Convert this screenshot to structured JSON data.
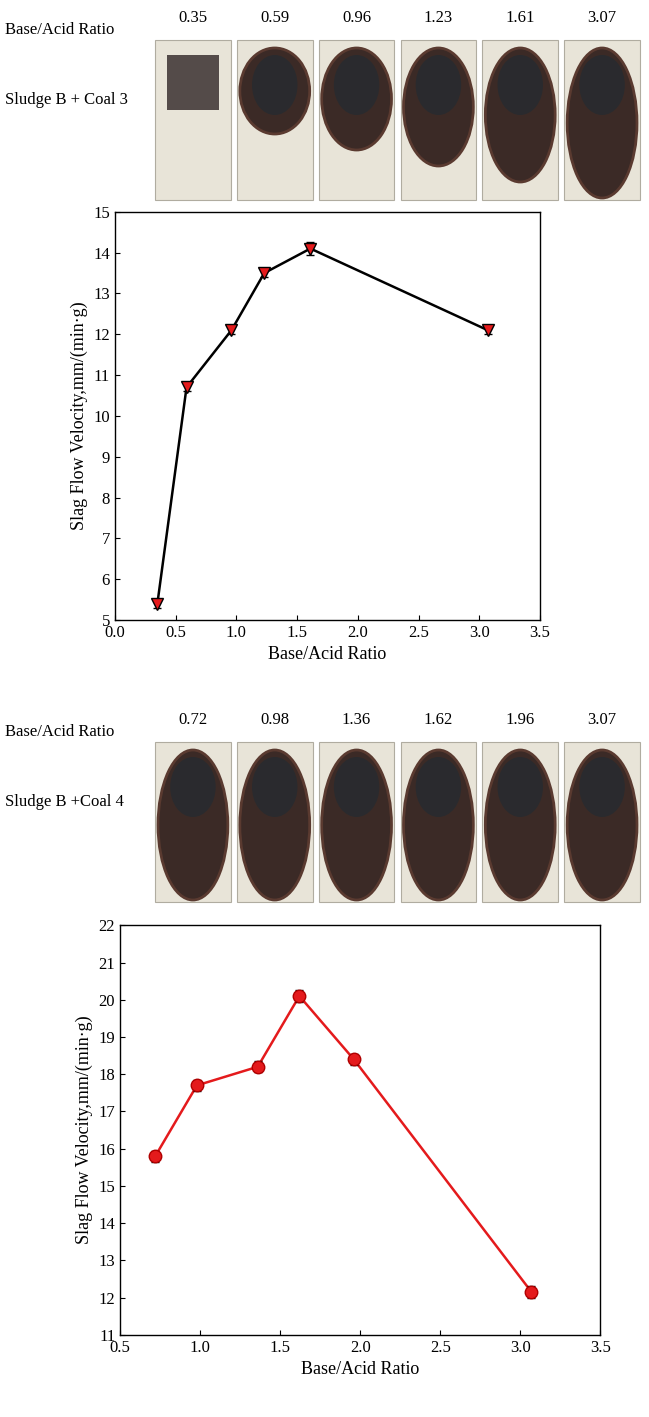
{
  "strips": [
    {
      "header": "Base/Acid Ratio",
      "sample": "Sludge B + Coal 3",
      "ratios": [
        0.35,
        0.59,
        0.96,
        1.23,
        1.61,
        3.07
      ]
    },
    {
      "header": "Base/Acid Ratio",
      "sample": "Sludge B +Coal 4",
      "ratios": [
        0.72,
        0.98,
        1.36,
        1.62,
        1.96,
        3.07
      ]
    }
  ],
  "chart_data": [
    {
      "type": "line",
      "x_label": "Base/Acid Ratio",
      "y_label": "Slag Flow Velocity,mm/(min·g)",
      "x": [
        0.35,
        0.59,
        0.96,
        1.23,
        1.61,
        3.07
      ],
      "values": [
        5.4,
        10.7,
        12.1,
        13.5,
        14.1,
        12.1
      ],
      "errors": [
        0.1,
        0.1,
        0.1,
        0.1,
        0.15,
        0.1
      ],
      "color": "#e41a1c",
      "marker": "v",
      "line_style": "solid",
      "xlim": [
        0.0,
        3.5
      ],
      "xticks": [
        {
          "value": 0,
          "label": "0.0"
        },
        0.5,
        {
          "value": 1,
          "label": "1.0"
        },
        1.5,
        {
          "value": 2,
          "label": "2.0"
        },
        2.5,
        {
          "value": 3,
          "label": "3.0"
        },
        3.5
      ],
      "ylim": [
        5,
        15
      ],
      "yticks": [
        5,
        6,
        7,
        8,
        9,
        10,
        11,
        12,
        13,
        14,
        15
      ]
    },
    {
      "type": "line",
      "x_label": "Base/Acid Ratio",
      "y_label": "Slag Flow Velocity,mm/(min·g)",
      "x": [
        0.72,
        0.98,
        1.36,
        1.62,
        1.96,
        3.07
      ],
      "values": [
        15.8,
        17.7,
        18.2,
        20.1,
        18.4,
        12.15
      ],
      "errors": [
        0.15,
        0.15,
        0.15,
        0.15,
        0.15,
        0.15
      ],
      "color": "#e41a1c",
      "marker": "o",
      "line_style": "solid",
      "xlim": [
        0.5,
        3.5
      ],
      "xticks": [
        0.5,
        {
          "value": 1,
          "label": "1.0"
        },
        1.5,
        {
          "value": 2,
          "label": "2.0"
        },
        2.5,
        {
          "value": 3,
          "label": "3.0"
        },
        3.5
      ],
      "ylim": [
        11,
        22
      ],
      "yticks": [
        11,
        12,
        13,
        14,
        15,
        16,
        17,
        18,
        19,
        20,
        21,
        22
      ]
    }
  ]
}
